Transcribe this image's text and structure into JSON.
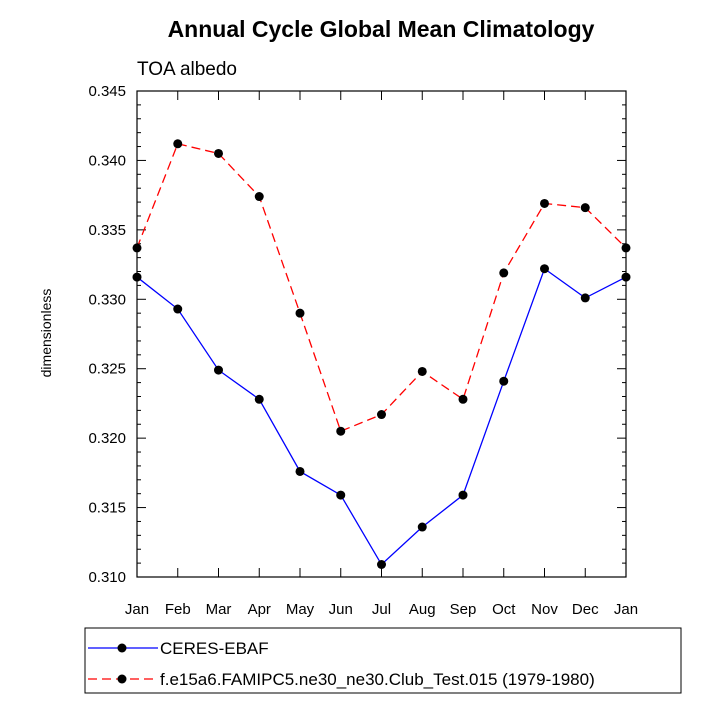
{
  "chart_data": {
    "type": "line",
    "title": "Annual Cycle Global Mean Climatology",
    "subtitle": "TOA albedo",
    "xlabel": "",
    "ylabel": "dimensionless",
    "categories": [
      "Jan",
      "Feb",
      "Mar",
      "Apr",
      "May",
      "Jun",
      "Jul",
      "Aug",
      "Sep",
      "Oct",
      "Nov",
      "Dec",
      "Jan"
    ],
    "ylim": [
      0.31,
      0.345
    ],
    "yticks": [
      "0.310",
      "0.315",
      "0.320",
      "0.325",
      "0.330",
      "0.335",
      "0.340",
      "0.345"
    ],
    "ytick_values": [
      0.31,
      0.315,
      0.32,
      0.325,
      0.33,
      0.335,
      0.34,
      0.345
    ],
    "series": [
      {
        "name": "CERES-EBAF",
        "color": "#0000ff",
        "line_style": "solid",
        "values": [
          0.3316,
          0.3293,
          0.3249,
          0.3228,
          0.3176,
          0.3159,
          0.3109,
          0.3136,
          0.3159,
          0.3241,
          0.3322,
          0.3301,
          0.3316
        ]
      },
      {
        "name": "f.e15a6.FAMIPC5.ne30_ne30.Club_Test.015 (1979-1980)",
        "color": "#ff0000",
        "line_style": "dashed",
        "values": [
          0.3337,
          0.3412,
          0.3405,
          0.3374,
          0.329,
          0.3205,
          0.3217,
          0.3248,
          0.3228,
          0.3319,
          0.3369,
          0.3366,
          0.3337
        ]
      }
    ],
    "legend_position": "bottom"
  }
}
